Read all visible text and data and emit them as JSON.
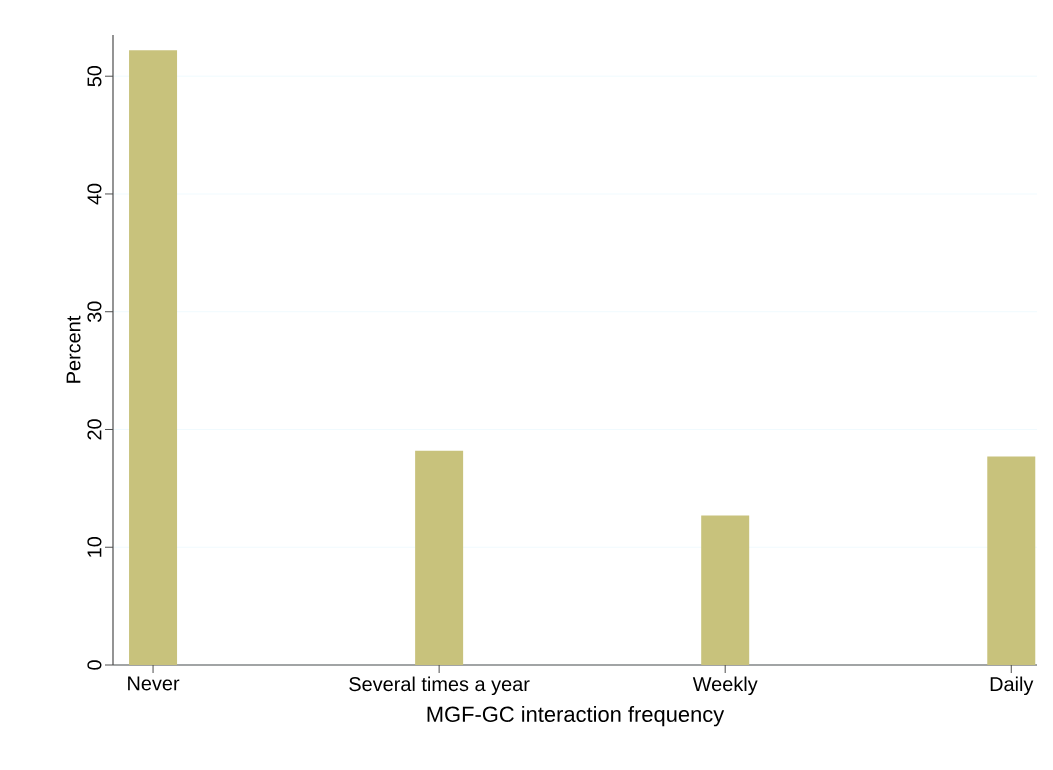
{
  "chart_data": {
    "type": "bar",
    "xlabel": "MGF-GC interaction frequency",
    "ylabel": "Percent",
    "categories": [
      "Never",
      "Several times a year",
      "Weekly",
      "Daily"
    ],
    "values": [
      52.2,
      18.2,
      12.7,
      17.7
    ],
    "color": "#c8c27c",
    "ylim": [
      0,
      53.5
    ],
    "yticks": [
      0,
      10,
      20,
      30,
      40,
      50
    ],
    "grid": "y"
  }
}
